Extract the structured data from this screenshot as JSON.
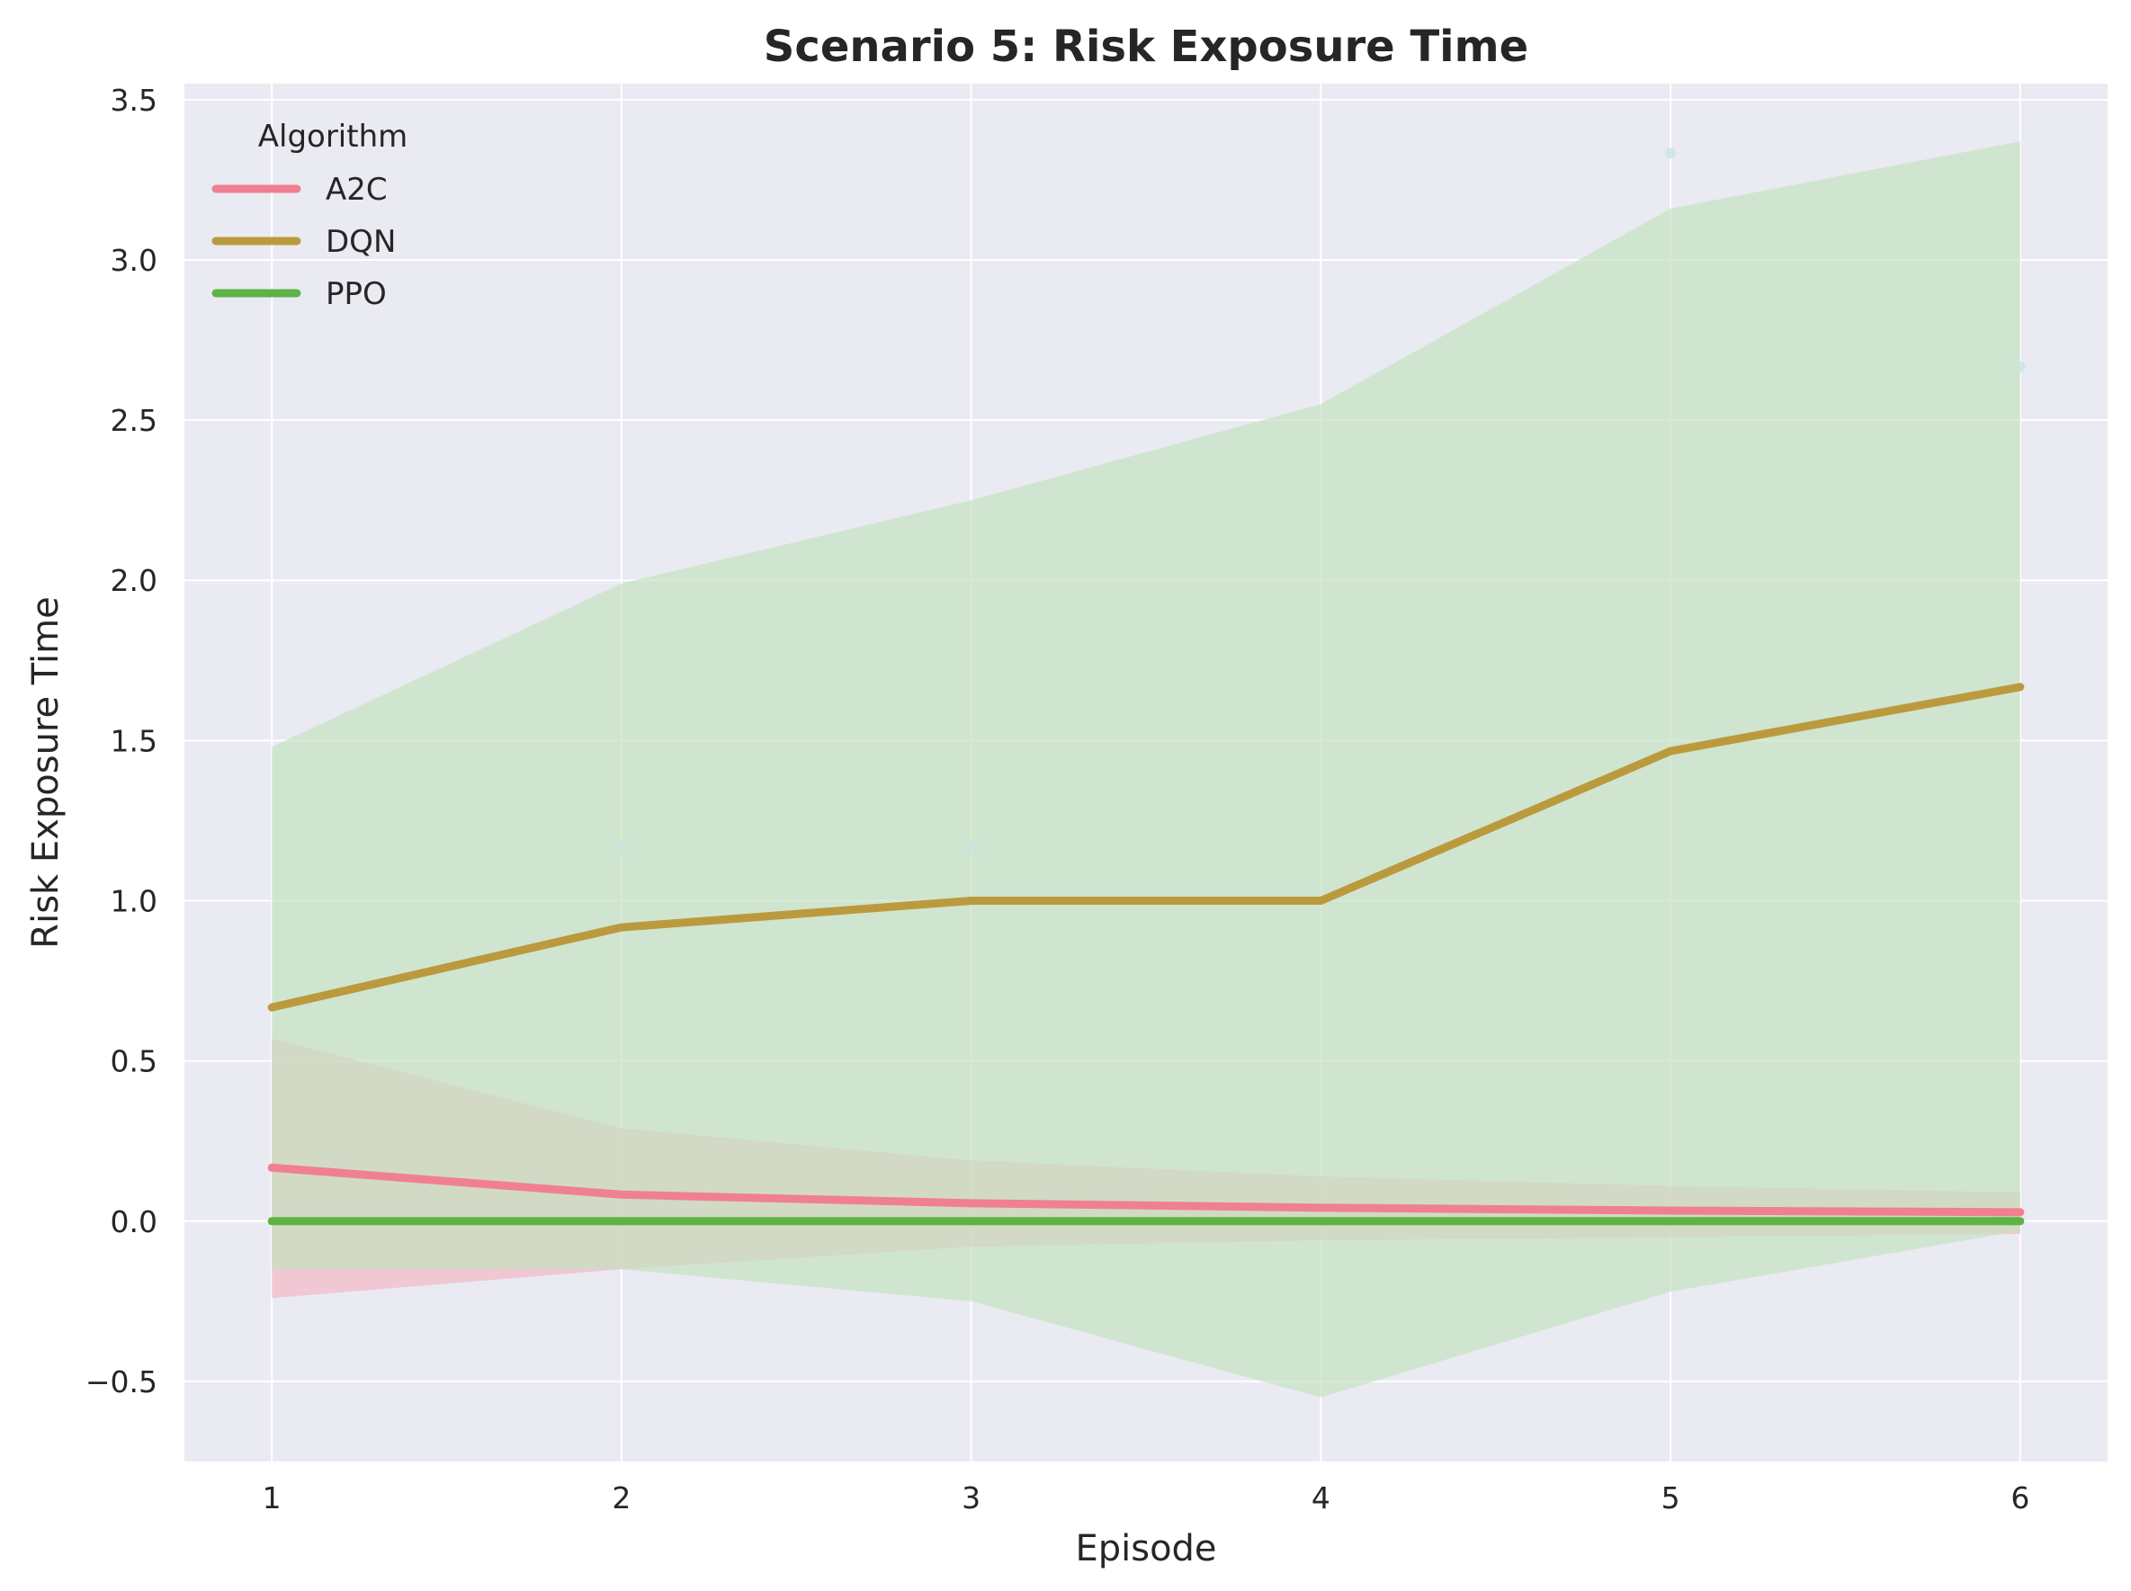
{
  "chart_data": {
    "type": "line",
    "title": "Scenario 5: Risk Exposure Time",
    "xlabel": "Episode",
    "ylabel": "Risk Exposure Time",
    "x": [
      1,
      2,
      3,
      4,
      5,
      6
    ],
    "xlim": [
      0.75,
      6.25
    ],
    "ylim": [
      -0.75,
      3.55
    ],
    "xticks": [
      1,
      2,
      3,
      4,
      5,
      6
    ],
    "yticks": [
      -0.5,
      0.0,
      0.5,
      1.0,
      1.5,
      2.0,
      2.5,
      3.0,
      3.5
    ],
    "ytick_labels": [
      "−0.5",
      "0.0",
      "0.5",
      "1.0",
      "1.5",
      "2.0",
      "2.5",
      "3.0",
      "3.5"
    ],
    "grid": true,
    "legend": {
      "title": "Algorithm",
      "position": "top-left"
    },
    "series": [
      {
        "name": "A2C",
        "color": "#f08090",
        "values": [
          0.167,
          0.083,
          0.056,
          0.042,
          0.033,
          0.028
        ],
        "band_lower": [
          -0.24,
          -0.15,
          -0.08,
          -0.06,
          -0.05,
          -0.04
        ],
        "band_upper": [
          0.57,
          0.29,
          0.19,
          0.14,
          0.11,
          0.09
        ],
        "band_color": "#f4b8c8"
      },
      {
        "name": "DQN",
        "color": "#bb9a3e",
        "values": [
          0.667,
          0.917,
          1.0,
          1.0,
          1.467,
          1.667
        ],
        "band_lower": [
          -0.15,
          -0.15,
          -0.25,
          -0.55,
          -0.22,
          -0.03
        ],
        "band_upper": [
          1.48,
          1.99,
          2.25,
          2.55,
          3.16,
          3.37
        ],
        "band_color": "#c5e3c0",
        "scatter": [
          {
            "x": 2,
            "y": 1.167
          },
          {
            "x": 3,
            "y": 1.167
          },
          {
            "x": 5,
            "y": 3.333
          },
          {
            "x": 6,
            "y": 2.667
          }
        ]
      },
      {
        "name": "PPO",
        "color": "#5db344",
        "values": [
          0.0,
          0.0,
          0.0,
          0.0,
          0.0,
          0.0
        ],
        "band_lower": [
          0.0,
          0.0,
          0.0,
          0.0,
          0.0,
          0.0
        ],
        "band_upper": [
          0.0,
          0.0,
          0.0,
          0.0,
          0.0,
          0.0
        ]
      }
    ]
  }
}
